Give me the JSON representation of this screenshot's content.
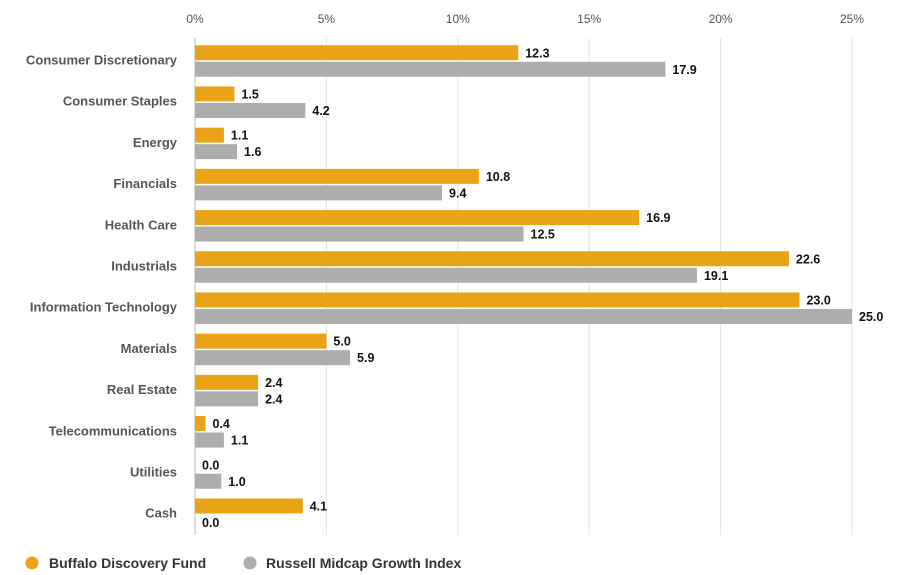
{
  "colors": {
    "fund": "#E8A317",
    "index": "#ADADAD",
    "grid": "#E3E3E3",
    "axis": "#BBBBBB"
  },
  "chart_data": {
    "type": "bar",
    "orientation": "horizontal",
    "categories": [
      "Consumer Discretionary",
      "Consumer Staples",
      "Energy",
      "Financials",
      "Health Care",
      "Industrials",
      "Information Technology",
      "Materials",
      "Real Estate",
      "Telecommunications",
      "Utilities",
      "Cash"
    ],
    "series": [
      {
        "name": "Buffalo Discovery Fund",
        "color": "#E8A317",
        "values": [
          12.3,
          1.5,
          1.1,
          10.8,
          16.9,
          22.6,
          23.0,
          5.0,
          2.4,
          0.4,
          0.0,
          4.1
        ],
        "labels": [
          "12.3",
          "1.5",
          "1.1",
          "10.8",
          "16.9",
          "22.6",
          "23.0",
          "5.0",
          "2.4",
          "0.4",
          "0.0",
          "4.1"
        ]
      },
      {
        "name": "Russell Midcap Growth Index",
        "color": "#ADADAD",
        "values": [
          17.9,
          4.2,
          1.6,
          9.4,
          12.5,
          19.1,
          25.0,
          5.9,
          2.4,
          1.1,
          1.0,
          0.0
        ],
        "labels": [
          "17.9",
          "4.2",
          "1.6",
          "9.4",
          "12.5",
          "19.1",
          "25.0",
          "5.9",
          "2.4",
          "1.1",
          "1.0",
          "0.0"
        ]
      }
    ],
    "x_ticks": [
      "0%",
      "5%",
      "10%",
      "15%",
      "20%",
      "25%"
    ],
    "x_tick_values": [
      0,
      5,
      10,
      15,
      20,
      25
    ],
    "xlim": [
      0,
      25
    ],
    "x_axis_position": "top",
    "grid": true,
    "legend_position": "bottom-left"
  }
}
